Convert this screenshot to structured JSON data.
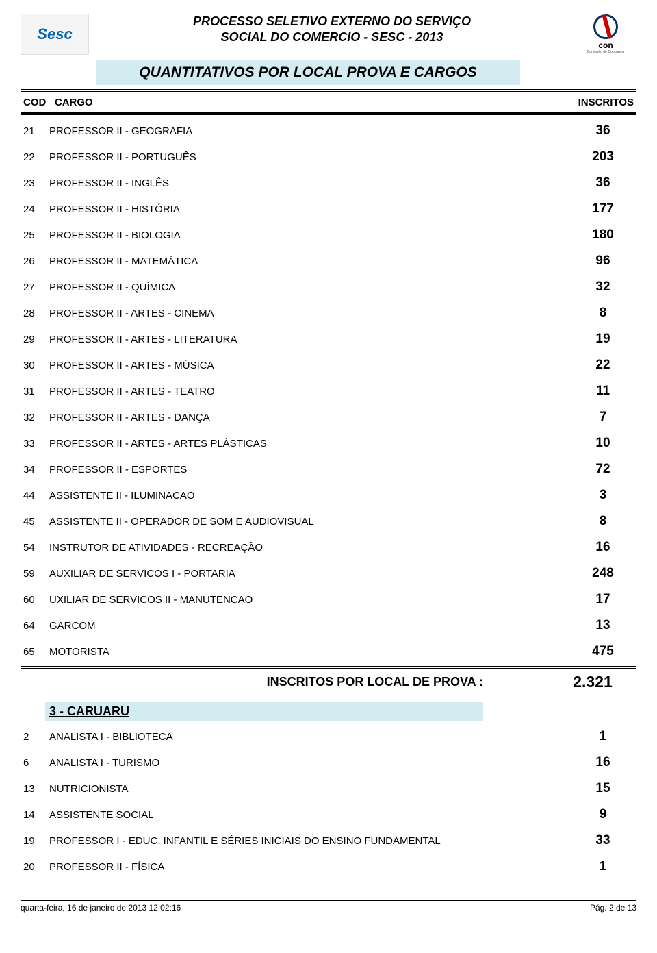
{
  "header": {
    "left_logo_text": "Sesc",
    "right_logo_text": "con",
    "right_logo_sub": "Comissão de Concursos",
    "title_line1": "PROCESSO SELETIVO EXTERNO DO SERVIÇO",
    "title_line2": "SOCIAL DO COMERCIO - SESC - 2013",
    "subtitle": "QUANTITATIVOS POR LOCAL PROVA E CARGOS"
  },
  "columns": {
    "cod": "COD",
    "cargo": "CARGO",
    "inscritos": "INSCRITOS"
  },
  "rows_top": [
    {
      "cod": "21",
      "cargo": "PROFESSOR II - GEOGRAFIA",
      "inscritos": "36"
    },
    {
      "cod": "22",
      "cargo": "PROFESSOR II - PORTUGUÊS",
      "inscritos": "203"
    },
    {
      "cod": "23",
      "cargo": "PROFESSOR II - INGLÊS",
      "inscritos": "36"
    },
    {
      "cod": "24",
      "cargo": "PROFESSOR II - HISTÓRIA",
      "inscritos": "177"
    },
    {
      "cod": "25",
      "cargo": "PROFESSOR II - BIOLOGIA",
      "inscritos": "180"
    },
    {
      "cod": "26",
      "cargo": "PROFESSOR II - MATEMÁTICA",
      "inscritos": "96"
    },
    {
      "cod": "27",
      "cargo": "PROFESSOR II - QUÍMICA",
      "inscritos": "32"
    },
    {
      "cod": "28",
      "cargo": "PROFESSOR II - ARTES - CINEMA",
      "inscritos": "8"
    },
    {
      "cod": "29",
      "cargo": "PROFESSOR II - ARTES - LITERATURA",
      "inscritos": "19"
    },
    {
      "cod": "30",
      "cargo": "PROFESSOR II - ARTES - MÚSICA",
      "inscritos": "22"
    },
    {
      "cod": "31",
      "cargo": "PROFESSOR II - ARTES - TEATRO",
      "inscritos": "11"
    },
    {
      "cod": "32",
      "cargo": "PROFESSOR II - ARTES - DANÇA",
      "inscritos": "7"
    },
    {
      "cod": "33",
      "cargo": "PROFESSOR II - ARTES - ARTES PLÁSTICAS",
      "inscritos": "10"
    },
    {
      "cod": "34",
      "cargo": "PROFESSOR II - ESPORTES",
      "inscritos": "72"
    },
    {
      "cod": "44",
      "cargo": "ASSISTENTE II - ILUMINACAO",
      "inscritos": "3"
    },
    {
      "cod": "45",
      "cargo": "ASSISTENTE II - OPERADOR DE SOM E AUDIOVISUAL",
      "inscritos": "8"
    },
    {
      "cod": "54",
      "cargo": "INSTRUTOR DE ATIVIDADES - RECREAÇÃO",
      "inscritos": "16"
    },
    {
      "cod": "59",
      "cargo": "AUXILIAR DE SERVICOS I - PORTARIA",
      "inscritos": "248"
    },
    {
      "cod": "60",
      "cargo": "UXILIAR DE SERVICOS II - MANUTENCAO",
      "inscritos": "17"
    },
    {
      "cod": "64",
      "cargo": "GARCOM",
      "inscritos": "13"
    },
    {
      "cod": "65",
      "cargo": "MOTORISTA",
      "inscritos": "475"
    }
  ],
  "total": {
    "label": "INSCRITOS  POR LOCAL DE PROVA :",
    "value": "2.321"
  },
  "section": {
    "title": "3 - CARUARU"
  },
  "rows_bottom": [
    {
      "cod": "2",
      "cargo": "ANALISTA I - BIBLIOTECA",
      "inscritos": "1"
    },
    {
      "cod": "6",
      "cargo": "ANALISTA I - TURISMO",
      "inscritos": "16"
    },
    {
      "cod": "13",
      "cargo": "NUTRICIONISTA",
      "inscritos": "15"
    },
    {
      "cod": "14",
      "cargo": "ASSISTENTE SOCIAL",
      "inscritos": "9"
    },
    {
      "cod": "19",
      "cargo": "PROFESSOR I - EDUC. INFANTIL E SÉRIES INICIAIS DO ENSINO FUNDAMENTAL",
      "inscritos": "33"
    },
    {
      "cod": "20",
      "cargo": "PROFESSOR II - FÍSICA",
      "inscritos": "1"
    }
  ],
  "footer": {
    "left": "quarta-feira, 16 de janeiro de 2013 12:02:16",
    "right": "Pág. 2 de 13"
  },
  "style": {
    "highlight_bg": "#d2ecf1",
    "text_color": "#000000",
    "page_bg": "#ffffff",
    "title_fontsize": 18,
    "subtitle_fontsize": 21,
    "row_fontsize": 15,
    "inscritos_fontsize": 19,
    "total_label_fontsize": 18,
    "total_value_fontsize": 23,
    "footer_fontsize": 12
  }
}
